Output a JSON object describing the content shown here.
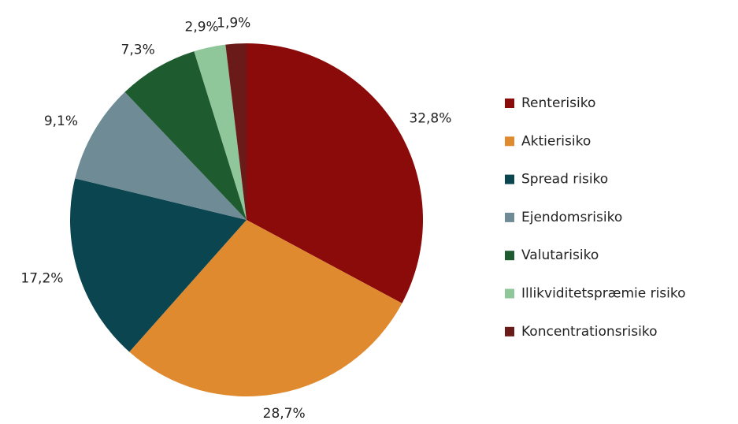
{
  "chart_data": {
    "type": "pie",
    "categories": [
      "Renterisiko",
      "Aktierisiko",
      "Spread risiko",
      "Ejendomsrisiko",
      "Valutarisiko",
      "Illikviditetspræmie risiko",
      "Koncentrationsrisiko"
    ],
    "values": [
      32.8,
      28.7,
      17.2,
      9.1,
      7.3,
      2.9,
      1.9
    ],
    "value_labels": [
      "32,8%",
      "28,7%",
      "17,2%",
      "9,1%",
      "7,3%",
      "2,9%",
      "1,9%"
    ],
    "colors": [
      "#8b0a0a",
      "#e08a30",
      "#0b4550",
      "#6e8b96",
      "#1e5c30",
      "#8fc69a",
      "#6b1a1a"
    ],
    "legend": "right"
  }
}
